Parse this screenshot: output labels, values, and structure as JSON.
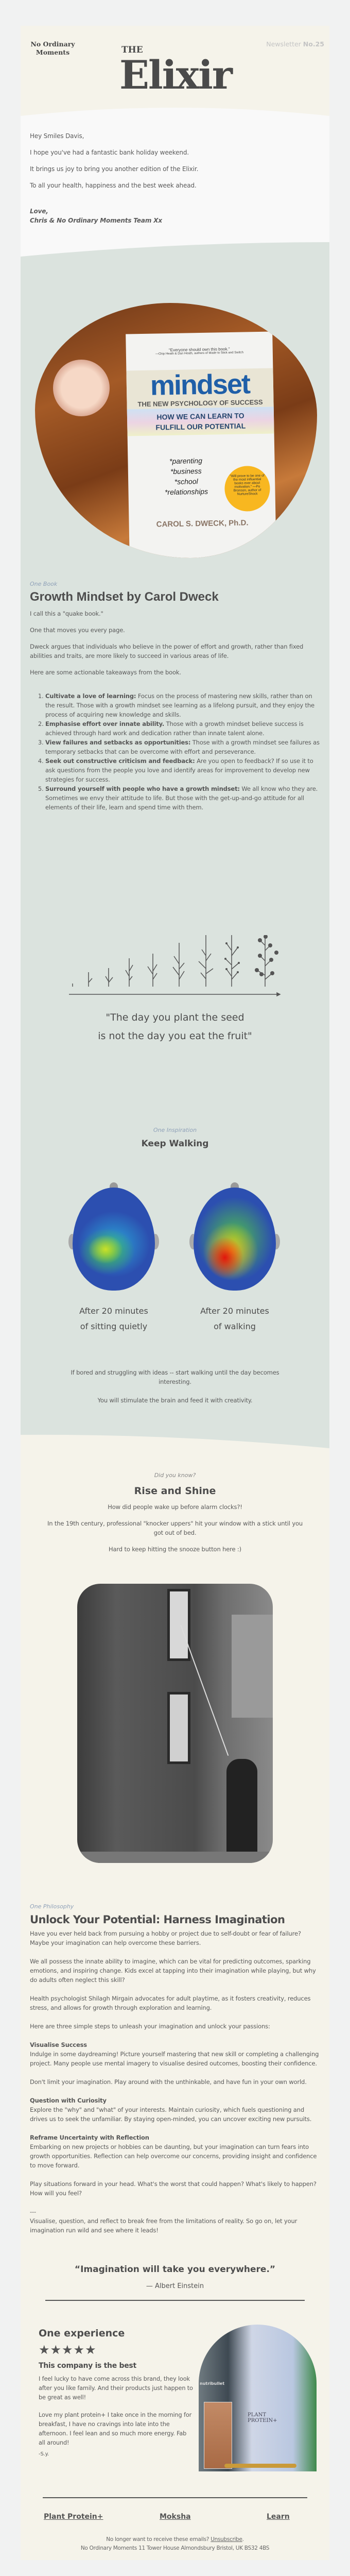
{
  "header": {
    "brand_line1": "No Ordinary",
    "brand_line2": "Moments",
    "newsletter_label": "Newsletter",
    "newsletter_number": "No.25",
    "title_small": "THE",
    "title_large": "Elixir"
  },
  "greeting": {
    "salutation": "Hey Smiles Davis,",
    "lines": [
      "I hope you've had a fantastic bank holiday weekend.",
      "It brings us joy to bring you another edition of the Elixir.",
      "To all your health, happiness and the best week ahead."
    ],
    "signoff": "Love,",
    "signature": "Chris & No Ordinary Moments Team Xx"
  },
  "book": {
    "cover": {
      "blurb": "\"Everyone should own this book.\"",
      "blurb_by": "—Chip Heath & Dan Heath, authors of Made to Stick and Switch",
      "title": "mindset",
      "subtitle": "THE NEW PSYCHOLOGY OF SUCCESS",
      "tagline": "HOW WE CAN LEARN TO FULFILL OUR POTENTIAL",
      "topics": [
        "*parenting",
        "*business",
        "*school",
        "*relationships"
      ],
      "sticker": "\"Will prove to be one of the most influential books ever about motivation.\" —Po Bronson, author of NurtureShock",
      "author": "CAROL S. DWECK, Ph.D."
    },
    "label": "One Book",
    "heading": "Growth Mindset by Carol Dweck",
    "paragraphs": [
      "I call this a \"quake book.\"",
      "One that moves you every page.",
      "Dweck argues that individuals who believe in the power of effort and growth, rather than fixed abilities and traits, are more likely to succeed in various areas of life.",
      "Here are some actionable takeaways from the book."
    ],
    "takeaways": [
      {
        "title": "Cultivate a love of learning:",
        "text": " Focus on the process of mastering new skills, rather than on the result. Those with a growth mindset see learning as a lifelong pursuit, and they enjoy the process of acquiring new knowledge and skills."
      },
      {
        "title": "Emphasise effort over innate ability.",
        "text": " Those with a growth mindset believe success is achieved through hard work and dedication rather than innate talent alone."
      },
      {
        "title": "View failures and setbacks as opportunities:",
        "text": " Those with a growth mindset see failures as temporary setbacks that can be overcome with effort and perseverance."
      },
      {
        "title": "Seek out constructive criticism and feedback:",
        "text": " Are you open to feedback? If so use it to ask questions from the people you love and identify areas for improvement to develop new strategies for success."
      },
      {
        "title": "Surround yourself with people who have a growth mindset:",
        "text": " We all know who they are. Sometimes we envy their attitude to life. But those with the get-up-and-go attitude for all elements of their life, learn and spend time with them."
      }
    ]
  },
  "seed_quote": {
    "line1": "\"The day you plant the seed",
    "line2": "is not the day you eat the fruit\""
  },
  "inspiration": {
    "label": "One Inspiration",
    "heading": "Keep Walking",
    "caption_left": [
      "After 20 minutes",
      "of sitting quietly"
    ],
    "caption_right": [
      "After 20 minutes",
      "of walking"
    ],
    "text1": "If bored and struggling with ideas -- start walking until the day becomes interesting.",
    "text2": "You will stimulate the brain and feed it with creativity."
  },
  "did_you_know": {
    "label": "Did you know?",
    "heading": "Rise and Shine",
    "p1": "How did people wake up before alarm clocks?!",
    "p2": "In the 19th century, professional \"knocker uppers\" hit your window with a stick until you got out of bed.",
    "p3": "Hard to keep hitting the snooze button here :)"
  },
  "philosophy": {
    "label": "One Philosophy",
    "heading": "Unlock Your Potential: Harness Imagination",
    "intro": [
      "Have you ever held back from pursuing a hobby or project due to self-doubt or fear of failure? Maybe your imagination can help overcome these barriers.",
      "We all possess the innate ability to imagine, which can be vital for predicting outcomes, sparking emotions, and inspiring change. Kids excel at tapping into their imagination while playing, but why do adults often neglect this skill?",
      "Health psychologist Shilagh Mirgain advocates for adult playtime, as it fosters creativity, reduces stress, and allows for growth through exploration and learning.",
      "Here are three simple steps to unleash your imagination and unlock your passions:"
    ],
    "steps": [
      {
        "title": "Visualise Success",
        "text": "Indulge in some daydreaming! Picture yourself mastering that new skill or completing a challenging project. Many people use mental imagery to visualise desired outcomes, boosting their confidence.",
        "extra": "Don't limit your imagination. Play around with the unthinkable, and have fun in your own world."
      },
      {
        "title": "Question with Curiosity",
        "text": "Explore the \"why\" and \"what\" of your interests. Maintain curiosity, which fuels questioning and drives us to seek the unfamiliar. By staying open-minded, you can uncover exciting new pursuits."
      },
      {
        "title": "Reframe Uncertainty with Reflection",
        "text": "Embarking on new projects or hobbies can be daunting, but your imagination can turn fears into growth opportunities. Reflection can help overcome our concerns, providing insight and confidence to move forward.",
        "extra": "Play situations forward in your head. What's the worst that could happen? What's likely to happen? How will you feel?"
      }
    ],
    "separator": "---",
    "closing": "Visualise, question, and reflect to break free from the limitations of reality. So go on, let your imagination run wild and see where it leads!",
    "quote": "“Imagination will take you everywhere.”",
    "quote_author": "— Albert Einstein"
  },
  "experience": {
    "heading": "One experience",
    "rating": 5,
    "stars": "★★★★★",
    "review_title": "This company is the best",
    "review_p1": "I feel lucky to have come across this brand, they look after you like family. And their products just happen to be great as well!",
    "review_p2": "Love my plant protein+ I take once in the morning for breakfast, I have no cravings into late into the afternoon. I feel lean and so much more energy. Fab all around!",
    "reviewer": "-S.y.",
    "product_label": "PLANT PROTEIN+",
    "blender_label": "nutribullet"
  },
  "footer": {
    "links": [
      "Plant Protein+",
      "Moksha",
      "Learn"
    ],
    "unsubscribe_prefix": "No longer want to receive these emails? ",
    "unsubscribe": "Unsubscribe",
    "unsubscribe_suffix": ".",
    "address": "No Ordinary Moments 11 Tower House Almondsbury Bristol, UK BS32 4BS"
  },
  "colors": {
    "cream": "#f5f3ea",
    "sage": "#dbe3de",
    "text": "#555555",
    "label": "#8fa1b8"
  }
}
